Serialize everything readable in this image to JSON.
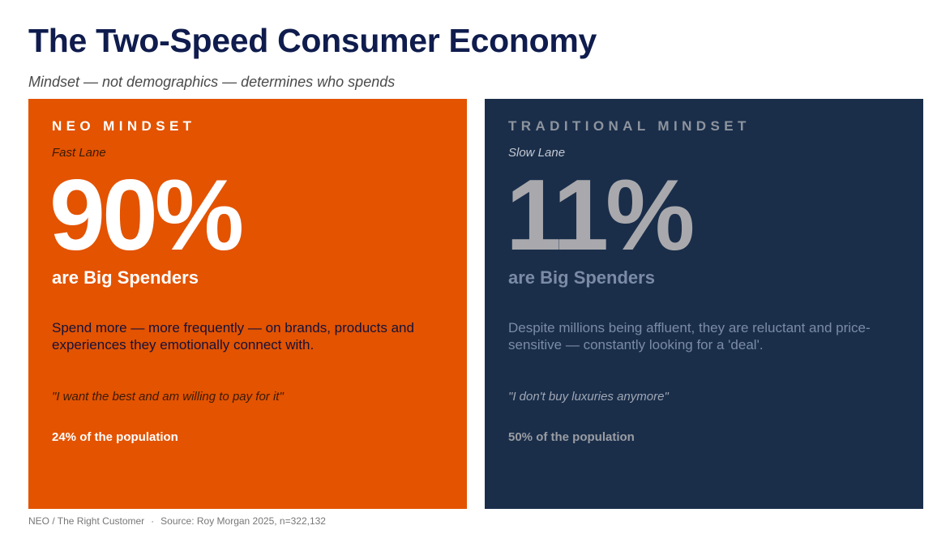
{
  "title": "The Two-Speed Consumer Economy",
  "subtitle": "Mindset — not demographics — determines who spends",
  "panels": [
    {
      "heading": "NEO MINDSET",
      "lane": "Fast Lane",
      "stat": "90%",
      "stat_label": "are Big Spenders",
      "description": "Spend more — more frequently — on brands, products and experiences they emotionally connect with.",
      "quote": "\"I want the best and am willing to pay for it\"",
      "population": "24% of the population",
      "background_color": "#e35300"
    },
    {
      "heading": "TRADITIONAL MINDSET",
      "lane": "Slow Lane",
      "stat": "11%",
      "stat_label": "are Big Spenders",
      "description": "Despite millions being affluent, they are reluctant and price-sensitive — constantly looking for a 'deal'.",
      "quote": "\"I don't buy luxuries anymore\"",
      "population": "50% of the population",
      "background_color": "#1a2e4a"
    }
  ],
  "footer": {
    "brand": "NEO / The Right Customer",
    "separator": "·",
    "source": "Source: Roy Morgan 2025, n=322,132"
  }
}
